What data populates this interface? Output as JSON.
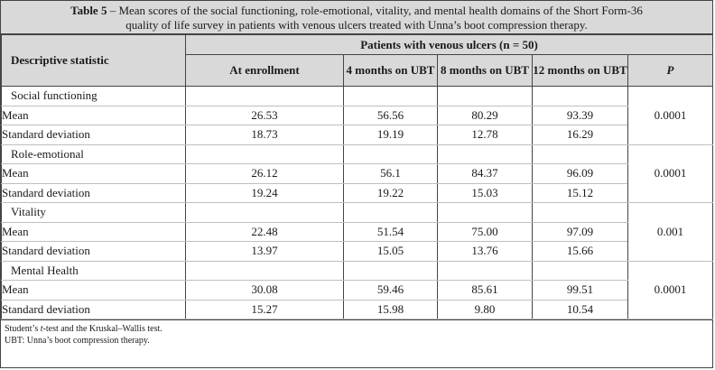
{
  "caption": {
    "label": "Table 5",
    "text": " – Mean scores of the social functioning, role-emotional, vitality, and mental health domains of the Short Form-36 quality of life survey in patients with venous ulcers treated with Unna’s boot compression therapy."
  },
  "header": {
    "descriptive": "Descriptive statistic",
    "group": "Patients with venous ulcers (n = 50)",
    "columns": [
      "At enrollment",
      "4 months on UBT",
      "8 months on UBT",
      "12 months on UBT"
    ],
    "p": "P"
  },
  "rows": [
    {
      "domain": "Social functioning",
      "mean_label": "Mean",
      "mean": [
        "26.53",
        "56.56",
        "80.29",
        "93.39"
      ],
      "sd_label": "Standard deviation",
      "sd": [
        "18.73",
        "19.19",
        "12.78",
        "16.29"
      ],
      "p": "0.0001"
    },
    {
      "domain": "Role-emotional",
      "mean_label": "Mean",
      "mean": [
        "26.12",
        "56.1",
        "84.37",
        "96.09"
      ],
      "sd_label": "Standard deviation",
      "sd": [
        "19.24",
        "19.22",
        "15.03",
        "15.12"
      ],
      "p": "0.0001"
    },
    {
      "domain": "Vitality",
      "mean_label": "Mean",
      "mean": [
        "22.48",
        "51.54",
        "75.00",
        "97.09"
      ],
      "sd_label": "Standard deviation",
      "sd": [
        "13.97",
        "15.05",
        "13.76",
        "15.66"
      ],
      "p": "0.001"
    },
    {
      "domain": "Mental Health",
      "mean_label": "Mean",
      "mean": [
        "30.08",
        "59.46",
        "85.61",
        "99.51"
      ],
      "sd_label": "Standard deviation",
      "sd": [
        "15.27",
        "15.98",
        "9.80",
        "10.54"
      ],
      "p": "0.0001"
    }
  ],
  "footnotes": {
    "line1_pre": "Student’s ",
    "line1_italic": "t",
    "line1_post": "-test and the Kruskal–Wallis test.",
    "line2": "UBT: Unna’s boot compression therapy."
  }
}
